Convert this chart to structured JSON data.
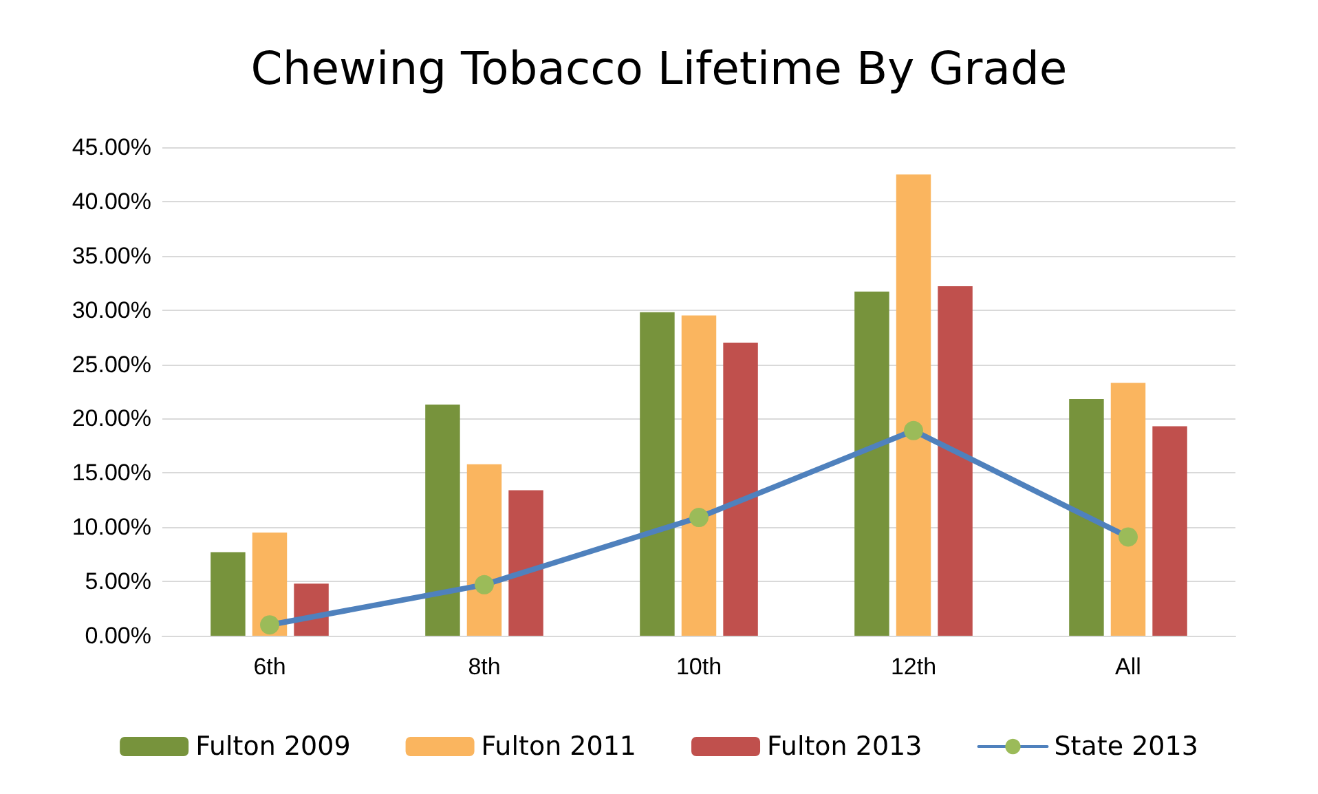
{
  "chart_data": {
    "type": "bar",
    "title": "Chewing Tobacco Lifetime By Grade",
    "categories": [
      "6th",
      "8th",
      "10th",
      "12th",
      "All"
    ],
    "series": [
      {
        "name": "Fulton 2009",
        "color": "#77933c",
        "values": [
          7.7,
          21.3,
          29.8,
          31.7,
          21.8
        ]
      },
      {
        "name": "Fulton 2011",
        "color": "#fab55f",
        "values": [
          9.5,
          15.8,
          29.5,
          42.5,
          23.3
        ]
      },
      {
        "name": "Fulton 2013",
        "color": "#c0504d",
        "values": [
          4.8,
          13.4,
          27.0,
          32.2,
          19.3
        ]
      },
      {
        "name": "State 2013",
        "type": "line",
        "color": "#4f81bd",
        "colors": [
          "#9bbb59",
          "#9bbb59",
          "#9bbb59",
          "#9bbb59",
          "#9bbb59"
        ],
        "marker": "circle",
        "values": [
          1.0,
          4.7,
          10.9,
          18.9,
          9.1
        ]
      }
    ],
    "ylim": [
      0,
      45
    ],
    "yticks": [
      {
        "value": 0,
        "label": "0.00%"
      },
      {
        "value": 5,
        "label": "5.00%"
      },
      {
        "value": 10,
        "label": "10.00%"
      },
      {
        "value": 15,
        "label": "15.00%"
      },
      {
        "value": 20,
        "label": "20.00%"
      },
      {
        "value": 25,
        "label": "25.00%"
      },
      {
        "value": 30,
        "label": "30.00%"
      },
      {
        "value": 35,
        "label": "35.00%"
      },
      {
        "value": 40,
        "label": "40.00%"
      },
      {
        "value": 45,
        "label": "45.00%"
      }
    ],
    "grid": "y",
    "legend": "bottom"
  }
}
